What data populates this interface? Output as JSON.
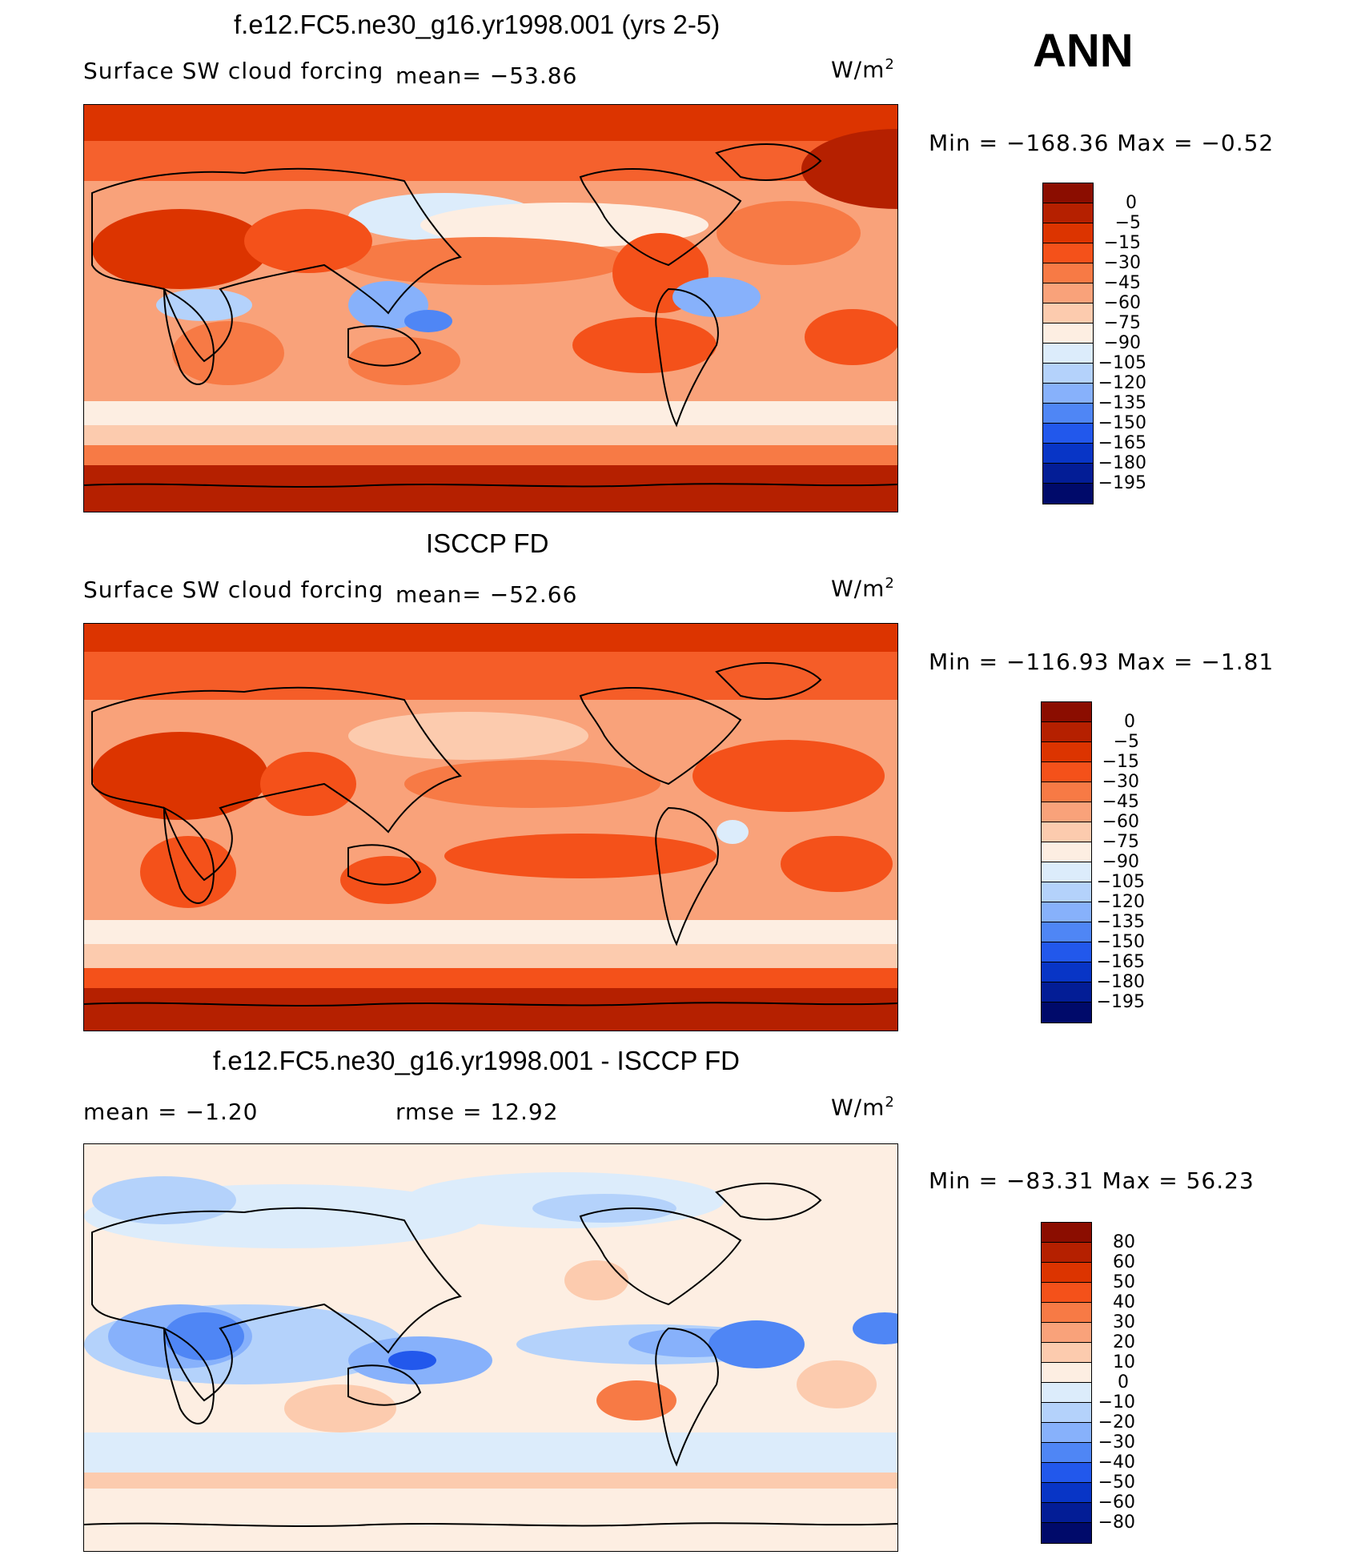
{
  "season": "ANN",
  "panels": [
    {
      "title": "f.e12.FC5.ne30_g16.yr1998.001 (yrs 2-5)",
      "left_label": "Surface SW cloud forcing",
      "stat1": "mean=  −53.86",
      "stat2": "",
      "units": "W/m",
      "units_sup": "2",
      "minmax": "Min  =  −168.36  Max  =    −0.52",
      "cbar_labels": [
        "0",
        "−5",
        "−15",
        "−30",
        "−45",
        "−60",
        "−75",
        "−90",
        "−105",
        "−120",
        "−135",
        "−150",
        "−165",
        "−180",
        "−195"
      ]
    },
    {
      "title": "ISCCP FD",
      "left_label": "Surface SW cloud forcing",
      "stat1": "mean=  −52.66",
      "stat2": "",
      "units": "W/m",
      "units_sup": "2",
      "minmax": "Min  =  −116.93  Max  =    −1.81",
      "cbar_labels": [
        "0",
        "−5",
        "−15",
        "−30",
        "−45",
        "−60",
        "−75",
        "−90",
        "−105",
        "−120",
        "−135",
        "−150",
        "−165",
        "−180",
        "−195"
      ]
    },
    {
      "title": "f.e12.FC5.ne30_g16.yr1998.001 - ISCCP FD",
      "left_label": "mean  =    −1.20",
      "stat1": "",
      "stat2": "rmse  =    12.92",
      "units": "W/m",
      "units_sup": "2",
      "minmax": "Min  =  −83.31  Max  =    56.23",
      "cbar_labels": [
        "80",
        "60",
        "50",
        "40",
        "30",
        "20",
        "10",
        "0",
        "−10",
        "−20",
        "−30",
        "−40",
        "−50",
        "−60",
        "−80"
      ]
    }
  ],
  "colorbar_colors": [
    "#8b0d00",
    "#b52000",
    "#dc3400",
    "#f4511a",
    "#f77a45",
    "#f9a27a",
    "#fccbae",
    "#fdeee2",
    "#dcecfb",
    "#b4d2fb",
    "#87b1fb",
    "#4f86f5",
    "#2258ec",
    "#0835c6",
    "#031d96",
    "#000a6a"
  ],
  "chart_data": [
    {
      "type": "heatmap",
      "title": "f.e12.FC5.ne30_g16.yr1998.001 (yrs 2-5)",
      "variable": "Surface SW cloud forcing",
      "units": "W/m2",
      "season": "ANN",
      "mean": -53.86,
      "min": -168.36,
      "max": -0.52,
      "contour_levels": [
        0,
        -5,
        -15,
        -30,
        -45,
        -60,
        -75,
        -90,
        -105,
        -120,
        -135,
        -150,
        -165,
        -180,
        -195
      ]
    },
    {
      "type": "heatmap",
      "title": "ISCCP FD",
      "variable": "Surface SW cloud forcing",
      "units": "W/m2",
      "mean": -52.66,
      "min": -116.93,
      "max": -1.81,
      "contour_levels": [
        0,
        -5,
        -15,
        -30,
        -45,
        -60,
        -75,
        -90,
        -105,
        -120,
        -135,
        -150,
        -165,
        -180,
        -195
      ]
    },
    {
      "type": "heatmap",
      "title": "f.e12.FC5.ne30_g16.yr1998.001 - ISCCP FD",
      "units": "W/m2",
      "mean": -1.2,
      "rmse": 12.92,
      "min": -83.31,
      "max": 56.23,
      "contour_levels": [
        80,
        60,
        50,
        40,
        30,
        20,
        10,
        0,
        -10,
        -20,
        -30,
        -40,
        -50,
        -60,
        -80
      ]
    }
  ]
}
